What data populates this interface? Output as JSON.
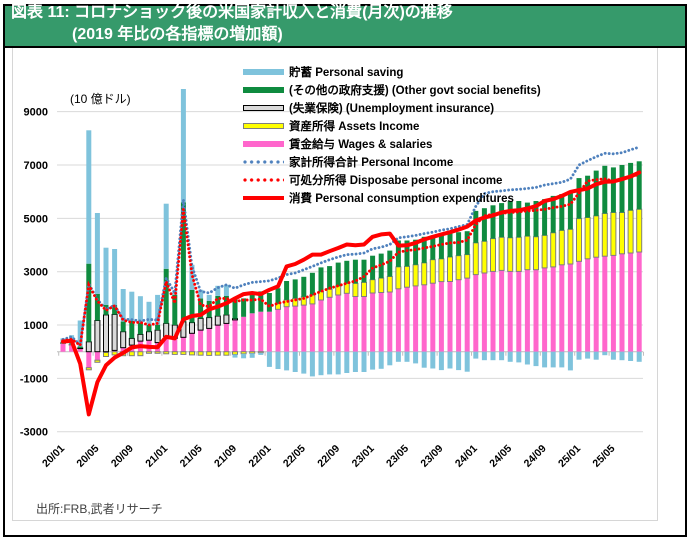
{
  "colors": {
    "title_bar": "#369a6b",
    "title_text": "#ffffff",
    "gridline": "#d9d9d9",
    "axis": "#bfbfbf"
  },
  "source": "出所:FRB,武者リサーチ",
  "chart_data": {
    "type": "bar",
    "stacked": true,
    "title": "図表 11: コロナショック後の米国家計収入と消費(月次)の推移",
    "subtitle": "(2019 年比の各指標の増加額)",
    "xlabel": "",
    "ylabel": "(10 億ドル)",
    "ylim": [
      -3000,
      10000
    ],
    "yticks": [
      9000,
      7000,
      5000,
      3000,
      1000,
      -1000,
      -3000
    ],
    "grid": true,
    "legend": "top-center",
    "x": [
      "20/01",
      "20/02",
      "20/03",
      "20/04",
      "20/05",
      "20/06",
      "20/07",
      "20/08",
      "20/09",
      "20/10",
      "20/11",
      "20/12",
      "21/01",
      "21/02",
      "21/03",
      "21/04",
      "21/05",
      "21/06",
      "21/07",
      "21/08",
      "21/09",
      "21/10",
      "21/11",
      "21/12",
      "22/01",
      "22/02",
      "22/03",
      "22/04",
      "22/05",
      "22/06",
      "22/07",
      "22/08",
      "22/09",
      "22/10",
      "22/11",
      "22/12",
      "23/01",
      "23/02",
      "23/03",
      "23/04",
      "23/05",
      "23/06",
      "23/07",
      "23/08",
      "23/09",
      "23/10",
      "23/11",
      "23/12",
      "24/01",
      "24/02",
      "24/03",
      "24/04",
      "24/05",
      "24/06",
      "24/07",
      "24/08",
      "24/09",
      "24/10",
      "24/11",
      "24/12",
      "25/01",
      "25/02",
      "25/03",
      "25/04",
      "25/05",
      "25/06",
      "25/07",
      "25/08"
    ],
    "xtick_labels": [
      "20/01",
      "20/05",
      "20/09",
      "21/01",
      "21/05",
      "21/09",
      "22/01",
      "22/05",
      "22/09",
      "23/01",
      "23/05",
      "23/09",
      "24/01",
      "24/05",
      "24/09",
      "25/01",
      "25/05"
    ],
    "series": [
      {
        "id": "saving",
        "name": "貯蓄 Personal saving",
        "kind": "stacked-bar",
        "color": "#7fc3dc",
        "values": [
          140,
          310,
          970,
          5000,
          3030,
          2140,
          2090,
          1220,
          1100,
          990,
          870,
          1120,
          2440,
          170,
          4250,
          940,
          320,
          230,
          380,
          420,
          -120,
          -170,
          -170,
          -80,
          -570,
          -650,
          -700,
          -760,
          -820,
          -925,
          -880,
          -850,
          -850,
          -800,
          -760,
          -760,
          -670,
          -640,
          -510,
          -380,
          -380,
          -440,
          -600,
          -630,
          -690,
          -630,
          -690,
          -750,
          -260,
          -320,
          -320,
          -320,
          -380,
          -400,
          -480,
          -540,
          -590,
          -590,
          -590,
          -700,
          -300,
          -260,
          -300,
          -130,
          -300,
          -320,
          -350,
          -380
        ]
      },
      {
        "id": "other_benefits",
        "name": "(その他の政府支援) (Other govt social benefits)",
        "kind": "stacked-bar",
        "color": "#0f8b3f",
        "values": [
          30,
          30,
          60,
          2930,
          1000,
          380,
          360,
          380,
          650,
          440,
          250,
          200,
          2050,
          1130,
          4480,
          1230,
          750,
          620,
          750,
          710,
          760,
          690,
          690,
          760,
          700,
          580,
          710,
          710,
          750,
          835,
          910,
          870,
          880,
          850,
          890,
          850,
          900,
          920,
          970,
          990,
          970,
          940,
          980,
          910,
          940,
          910,
          880,
          880,
          1200,
          1240,
          1250,
          1280,
          1380,
          1360,
          1260,
          1340,
          1360,
          1380,
          1360,
          1440,
          1520,
          1570,
          1700,
          1790,
          1690,
          1780,
          1780,
          1800
        ]
      },
      {
        "id": "unemployment",
        "name": "(失業保険) (Unemployment insurance)",
        "kind": "stacked-bar",
        "color": "#d9d9d9",
        "border": "#000000",
        "values": [
          0,
          0,
          20,
          370,
          1170,
          1380,
          1350,
          600,
          250,
          250,
          320,
          470,
          490,
          500,
          580,
          400,
          440,
          405,
          340,
          320,
          50,
          0,
          0,
          0,
          0,
          0,
          0,
          0,
          0,
          0,
          0,
          0,
          0,
          0,
          0,
          0,
          0,
          0,
          0,
          0,
          0,
          0,
          0,
          0,
          0,
          0,
          0,
          0,
          0,
          0,
          0,
          0,
          0,
          0,
          0,
          0,
          0,
          0,
          0,
          0,
          0,
          0,
          0,
          0,
          0,
          0,
          0,
          0
        ]
      },
      {
        "id": "assets",
        "name": "資産所得 Assets Income",
        "kind": "stacked-bar",
        "color": "#ffff00",
        "border": "#7f7f7f",
        "values": [
          20,
          30,
          0,
          -80,
          -80,
          -150,
          -120,
          -150,
          -150,
          -150,
          -60,
          -60,
          -80,
          -100,
          -100,
          -120,
          -130,
          -140,
          -130,
          -130,
          -100,
          -80,
          -60,
          -40,
          0,
          210,
          250,
          290,
          310,
          335,
          310,
          300,
          335,
          370,
          490,
          530,
          500,
          540,
          580,
          820,
          780,
          790,
          820,
          880,
          850,
          920,
          900,
          880,
          1190,
          1190,
          1230,
          1240,
          1260,
          1280,
          1255,
          1235,
          1220,
          1280,
          1290,
          1300,
          1600,
          1550,
          1550,
          1600,
          1610,
          1550,
          1600,
          1600
        ]
      },
      {
        "id": "wages",
        "name": "賃金給与 Wages & salaries",
        "kind": "stacked-bar",
        "color": "#ff66cc",
        "values": [
          310,
          250,
          120,
          -600,
          -320,
          -30,
          50,
          150,
          250,
          400,
          430,
          340,
          570,
          500,
          540,
          690,
          810,
          875,
          1000,
          1060,
          1190,
          1310,
          1440,
          1500,
          1500,
          1590,
          1690,
          1710,
          1750,
          1790,
          1940,
          2040,
          2125,
          2190,
          2070,
          2070,
          2200,
          2220,
          2240,
          2360,
          2420,
          2470,
          2510,
          2570,
          2630,
          2630,
          2700,
          2760,
          2890,
          2950,
          3010,
          3050,
          3010,
          3010,
          3075,
          3075,
          3140,
          3180,
          3260,
          3290,
          3390,
          3480,
          3540,
          3580,
          3610,
          3670,
          3700,
          3740
        ]
      },
      {
        "id": "personal_income",
        "name": "家計所得合計 Personal Income",
        "kind": "line",
        "line_style": "dotted",
        "color": "#4f81bd",
        "values": [
          460,
          560,
          250,
          2550,
          1950,
          1590,
          1740,
          1220,
          1200,
          1150,
          1210,
          1190,
          2760,
          2200,
          5700,
          3200,
          2260,
          2200,
          2400,
          2510,
          2380,
          2510,
          2600,
          2630,
          2660,
          2760,
          2890,
          2950,
          3075,
          3200,
          3330,
          3450,
          3550,
          3640,
          3660,
          3700,
          3860,
          3920,
          4020,
          4270,
          4310,
          4360,
          4430,
          4480,
          4560,
          4610,
          4690,
          4770,
          5450,
          5930,
          6000,
          6030,
          6070,
          6090,
          6120,
          6160,
          6250,
          6300,
          6350,
          6470,
          7000,
          7160,
          7310,
          7440,
          7420,
          7460,
          7570,
          7670
        ]
      },
      {
        "id": "disposable_income",
        "name": "可処分所得 Disposabe personal income",
        "kind": "line",
        "line_style": "dotted",
        "color": "#ff0000",
        "values": [
          410,
          470,
          240,
          2500,
          1900,
          1550,
          1720,
          1180,
          1100,
          1100,
          1000,
          1060,
          2630,
          1820,
          5340,
          2890,
          1750,
          1690,
          2000,
          2000,
          1880,
          1940,
          1940,
          1970,
          1700,
          1820,
          1880,
          1940,
          2000,
          2130,
          2260,
          2380,
          2470,
          2570,
          2650,
          2820,
          3140,
          3260,
          3390,
          3730,
          3790,
          3830,
          3890,
          3950,
          4020,
          4080,
          4100,
          4180,
          4770,
          5090,
          5150,
          5190,
          5220,
          5240,
          5280,
          5300,
          5340,
          5400,
          5450,
          5530,
          5950,
          6400,
          6450,
          6480,
          6400,
          6450,
          6550,
          6650
        ]
      },
      {
        "id": "consumption",
        "name": "消費 Personal consumption expenditures",
        "kind": "line",
        "line_style": "solid",
        "color": "#ff0000",
        "values": [
          380,
          410,
          -450,
          -2350,
          -1140,
          -510,
          -220,
          -45,
          160,
          210,
          180,
          170,
          560,
          500,
          1210,
          1340,
          1380,
          1590,
          1690,
          1820,
          2000,
          2160,
          2200,
          2160,
          2320,
          2450,
          3200,
          3290,
          3450,
          3640,
          3640,
          3770,
          3890,
          4020,
          3990,
          4020,
          4310,
          4400,
          4430,
          3980,
          3990,
          4080,
          4210,
          4310,
          4400,
          4480,
          4580,
          4690,
          4920,
          5030,
          5110,
          5220,
          5280,
          5300,
          5370,
          5460,
          5650,
          5720,
          5840,
          5990,
          6060,
          6120,
          6280,
          6370,
          6380,
          6470,
          6570,
          6720
        ]
      }
    ]
  }
}
